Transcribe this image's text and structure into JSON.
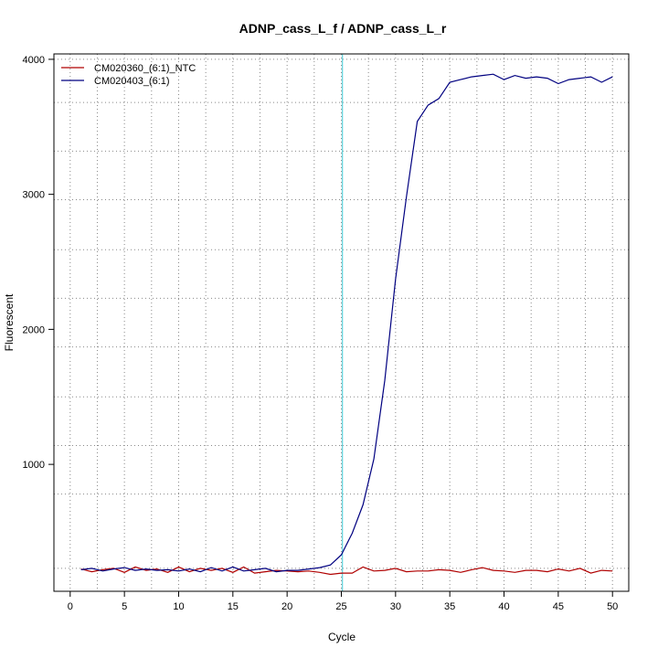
{
  "chart_data": {
    "type": "line",
    "title": "ADNP_cass_L_f / ADNP_cass_L_r",
    "xlabel": "Cycle",
    "ylabel": "Fluorescent",
    "xlim": [
      -1.5,
      51.5
    ],
    "ylim": [
      60,
      4040
    ],
    "x_ticks": [
      0,
      5,
      10,
      15,
      20,
      25,
      30,
      35,
      40,
      45,
      50
    ],
    "y_ticks": [
      1000,
      2000,
      3000,
      4000
    ],
    "grid": true,
    "grid_x": [
      2.5,
      7.5,
      12.5,
      17.5,
      22.5,
      27.5,
      32.5,
      37.5,
      42.5,
      47.5
    ],
    "grid_y": [
      230,
      780,
      1140,
      1500,
      1870,
      2230,
      2590,
      2960,
      3320,
      3680,
      4000
    ],
    "threshold_x": 25.1,
    "threshold_color": "#5fd3dc",
    "legend_position": "top-left",
    "x": [
      1,
      2,
      3,
      4,
      5,
      6,
      7,
      8,
      9,
      10,
      11,
      12,
      13,
      14,
      15,
      16,
      17,
      18,
      19,
      20,
      21,
      22,
      23,
      24,
      25,
      26,
      27,
      28,
      29,
      30,
      31,
      32,
      33,
      34,
      35,
      36,
      37,
      38,
      39,
      40,
      41,
      42,
      43,
      44,
      45,
      46,
      47,
      48,
      49,
      50
    ],
    "series": [
      {
        "name": "CM020360_(6:1)_NTC",
        "color": "#b00000",
        "values": [
          225,
          205,
          220,
          230,
          200,
          240,
          215,
          225,
          200,
          240,
          205,
          230,
          215,
          230,
          200,
          240,
          195,
          205,
          215,
          210,
          205,
          210,
          200,
          185,
          195,
          195,
          240,
          210,
          215,
          230,
          205,
          210,
          210,
          220,
          215,
          200,
          220,
          235,
          215,
          210,
          200,
          215,
          215,
          205,
          225,
          210,
          230,
          195,
          215,
          210
        ]
      },
      {
        "name": "CM020403_(6:1)",
        "color": "#000080",
        "values": [
          220,
          230,
          210,
          225,
          235,
          215,
          225,
          215,
          220,
          210,
          225,
          205,
          235,
          210,
          240,
          210,
          220,
          230,
          205,
          215,
          215,
          225,
          235,
          255,
          330,
          490,
          700,
          1040,
          1620,
          2370,
          2980,
          3540,
          3660,
          3710,
          3830,
          3850,
          3870,
          3880,
          3890,
          3850,
          3880,
          3860,
          3870,
          3860,
          3820,
          3850,
          3860,
          3870,
          3830,
          3870
        ]
      }
    ]
  }
}
